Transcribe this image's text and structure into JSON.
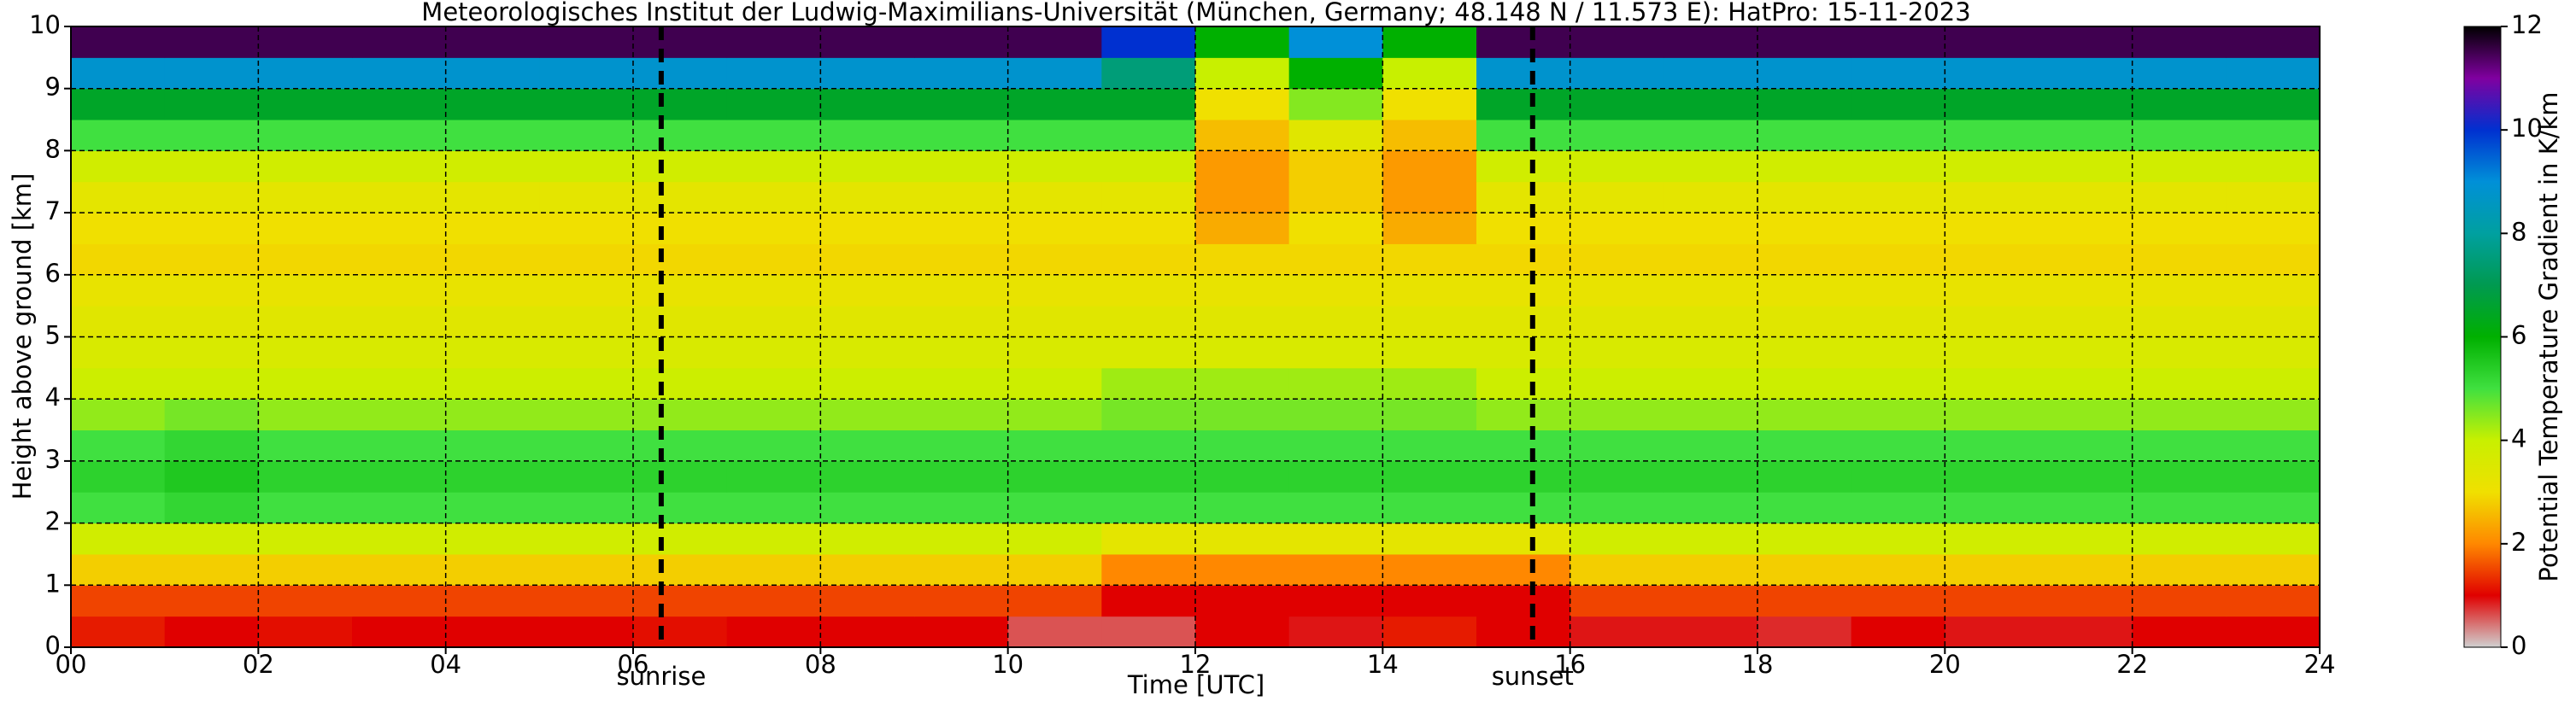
{
  "chart_data": {
    "type": "heatmap",
    "title": "Meteorologisches Institut der Ludwig-Maximilians-Universität (München, Germany; 48.148 N / 11.573 E):    HatPro: 15-11-2023",
    "xlabel": "Time [UTC]",
    "ylabel": "Height above ground [km]",
    "xlim": [
      0,
      24
    ],
    "ylim": [
      0,
      10
    ],
    "xticks": [
      {
        "value": 0,
        "label": "00"
      },
      {
        "value": 2,
        "label": "02"
      },
      {
        "value": 4,
        "label": "04"
      },
      {
        "value": 6,
        "label": "06"
      },
      {
        "value": 8,
        "label": "08"
      },
      10,
      12,
      14,
      16,
      18,
      20,
      22,
      24
    ],
    "yticks": [
      0,
      1,
      2,
      3,
      4,
      5,
      6,
      7,
      8,
      9,
      10
    ],
    "grid": true,
    "xbins": [
      0,
      1,
      2,
      3,
      4,
      5,
      6,
      7,
      8,
      9,
      10,
      11,
      12,
      13,
      14,
      15,
      16,
      17,
      18,
      19,
      20,
      21,
      22,
      23,
      24
    ],
    "ybins": [
      0,
      0.5,
      1,
      1.5,
      2,
      2.5,
      3,
      3.5,
      4,
      4.5,
      5,
      5.5,
      6,
      6.5,
      7,
      7.5,
      8,
      8.5,
      9,
      9.5,
      10
    ],
    "values": [
      [
        1.2,
        1.0,
        1.1,
        1.0,
        1.0,
        1.0,
        1.1,
        1.0,
        1.0,
        1.0,
        0.6,
        0.6,
        1.0,
        0.9,
        1.2,
        1.0,
        0.9,
        0.9,
        0.8,
        1.0,
        0.9,
        0.9,
        1.0,
        1.0
      ],
      [
        1.5,
        1.5,
        1.5,
        1.5,
        1.5,
        1.5,
        1.5,
        1.5,
        1.5,
        1.5,
        1.5,
        1.0,
        1.0,
        1.0,
        1.0,
        1.0,
        1.5,
        1.5,
        1.5,
        1.5,
        1.5,
        1.5,
        1.5,
        1.5
      ],
      [
        2.8,
        2.8,
        2.8,
        2.8,
        2.8,
        2.8,
        2.8,
        2.8,
        2.8,
        2.8,
        2.8,
        2.0,
        2.0,
        2.0,
        2.0,
        2.0,
        2.8,
        2.8,
        2.8,
        2.8,
        2.8,
        2.8,
        2.8,
        2.8
      ],
      [
        3.8,
        3.8,
        3.8,
        3.8,
        3.8,
        3.8,
        3.8,
        3.8,
        3.8,
        3.8,
        3.8,
        3.3,
        3.3,
        3.3,
        3.3,
        3.3,
        3.8,
        3.8,
        3.8,
        3.8,
        3.8,
        3.8,
        3.8,
        3.8
      ],
      [
        5.0,
        5.2,
        5.0,
        5.0,
        5.0,
        5.0,
        5.0,
        5.0,
        5.0,
        5.0,
        5.0,
        5.0,
        5.0,
        5.0,
        5.0,
        5.0,
        5.0,
        5.0,
        5.0,
        5.0,
        5.0,
        5.0,
        5.0,
        5.0
      ],
      [
        5.3,
        5.5,
        5.3,
        5.3,
        5.3,
        5.3,
        5.3,
        5.3,
        5.3,
        5.3,
        5.3,
        5.3,
        5.3,
        5.3,
        5.3,
        5.3,
        5.3,
        5.3,
        5.3,
        5.3,
        5.3,
        5.3,
        5.3,
        5.3
      ],
      [
        5.0,
        5.2,
        5.0,
        5.0,
        5.0,
        5.0,
        5.0,
        5.0,
        5.0,
        5.0,
        5.0,
        5.0,
        5.0,
        5.0,
        5.0,
        5.0,
        5.0,
        5.0,
        5.0,
        5.0,
        5.0,
        5.0,
        5.0,
        5.0
      ],
      [
        4.4,
        4.6,
        4.4,
        4.4,
        4.4,
        4.4,
        4.4,
        4.4,
        4.4,
        4.4,
        4.4,
        4.6,
        4.6,
        4.6,
        4.6,
        4.4,
        4.4,
        4.4,
        4.4,
        4.4,
        4.4,
        4.4,
        4.4,
        4.4
      ],
      [
        3.9,
        3.9,
        3.9,
        3.9,
        3.9,
        3.9,
        3.9,
        3.9,
        3.9,
        3.9,
        3.9,
        4.3,
        4.3,
        4.3,
        4.3,
        3.9,
        3.9,
        3.9,
        3.9,
        3.9,
        3.9,
        3.9,
        3.9,
        3.9
      ],
      [
        3.6,
        3.6,
        3.6,
        3.6,
        3.6,
        3.6,
        3.6,
        3.6,
        3.6,
        3.6,
        3.6,
        3.6,
        3.6,
        3.6,
        3.6,
        3.6,
        3.6,
        3.6,
        3.6,
        3.6,
        3.6,
        3.6,
        3.6,
        3.6
      ],
      [
        3.4,
        3.4,
        3.4,
        3.4,
        3.4,
        3.4,
        3.4,
        3.4,
        3.4,
        3.4,
        3.4,
        3.4,
        3.4,
        3.4,
        3.4,
        3.4,
        3.4,
        3.4,
        3.4,
        3.4,
        3.4,
        3.4,
        3.4,
        3.4
      ],
      [
        3.2,
        3.2,
        3.2,
        3.2,
        3.2,
        3.2,
        3.2,
        3.2,
        3.2,
        3.2,
        3.2,
        3.2,
        3.2,
        3.2,
        3.2,
        3.2,
        3.2,
        3.2,
        3.2,
        3.2,
        3.2,
        3.2,
        3.2,
        3.2
      ],
      [
        2.9,
        2.9,
        2.9,
        2.9,
        2.9,
        2.9,
        2.9,
        2.9,
        2.9,
        2.9,
        2.9,
        2.9,
        2.9,
        2.9,
        2.9,
        2.9,
        2.9,
        2.9,
        2.9,
        2.9,
        2.9,
        2.9,
        2.9,
        2.9
      ],
      [
        3.0,
        3.0,
        3.0,
        3.0,
        3.0,
        3.0,
        3.0,
        3.0,
        3.0,
        3.0,
        3.0,
        3.0,
        2.4,
        3.0,
        2.4,
        3.0,
        3.0,
        3.0,
        3.0,
        3.0,
        3.0,
        3.0,
        3.0,
        3.0
      ],
      [
        3.3,
        3.3,
        3.3,
        3.3,
        3.3,
        3.3,
        3.3,
        3.3,
        3.3,
        3.3,
        3.3,
        3.3,
        2.2,
        2.8,
        2.2,
        3.3,
        3.3,
        3.3,
        3.3,
        3.3,
        3.3,
        3.3,
        3.3,
        3.3
      ],
      [
        3.8,
        3.8,
        3.8,
        3.8,
        3.8,
        3.8,
        3.8,
        3.8,
        3.8,
        3.8,
        3.8,
        3.8,
        2.2,
        2.8,
        2.2,
        3.8,
        3.8,
        3.8,
        3.8,
        3.8,
        3.8,
        3.8,
        3.8,
        3.8
      ],
      [
        5.0,
        5.0,
        5.0,
        5.0,
        5.0,
        5.0,
        5.0,
        5.0,
        5.0,
        5.0,
        5.0,
        5.0,
        2.6,
        3.4,
        2.6,
        5.0,
        5.0,
        5.0,
        5.0,
        5.0,
        5.0,
        5.0,
        5.0,
        5.0
      ],
      [
        6.5,
        6.5,
        6.5,
        6.5,
        6.5,
        6.5,
        6.5,
        6.5,
        6.5,
        6.5,
        6.5,
        6.5,
        3.0,
        4.5,
        3.0,
        6.5,
        6.5,
        6.5,
        6.5,
        6.5,
        6.5,
        6.5,
        6.5,
        6.5
      ],
      [
        8.8,
        8.8,
        8.8,
        8.8,
        8.8,
        8.8,
        8.8,
        8.8,
        8.8,
        8.8,
        8.8,
        7.5,
        4.0,
        6.0,
        4.0,
        8.8,
        8.8,
        8.8,
        8.8,
        8.8,
        8.8,
        8.8,
        8.8,
        8.8
      ],
      [
        11.5,
        11.5,
        11.5,
        11.5,
        11.5,
        11.5,
        11.5,
        11.5,
        11.5,
        11.5,
        11.5,
        10.0,
        6.0,
        9.0,
        6.0,
        11.5,
        11.5,
        11.5,
        11.5,
        11.5,
        11.5,
        11.5,
        11.5,
        11.5
      ]
    ],
    "colormap": [
      {
        "value": 0,
        "color": "#d0d0d0"
      },
      {
        "value": 1,
        "color": "#e00000"
      },
      {
        "value": 2,
        "color": "#ff8800"
      },
      {
        "value": 3,
        "color": "#f0e000"
      },
      {
        "value": 4,
        "color": "#c8f000"
      },
      {
        "value": 5,
        "color": "#40e040"
      },
      {
        "value": 6,
        "color": "#00b000"
      },
      {
        "value": 7,
        "color": "#009a50"
      },
      {
        "value": 8,
        "color": "#00a0a0"
      },
      {
        "value": 9,
        "color": "#0090d8"
      },
      {
        "value": 10,
        "color": "#0030d0"
      },
      {
        "value": 11,
        "color": "#8000a0"
      },
      {
        "value": 12,
        "color": "#000000"
      }
    ],
    "colorbar": {
      "label": "Potential Temperature Gradient in K/km",
      "lim": [
        0,
        12
      ],
      "ticks": [
        0,
        2,
        4,
        6,
        8,
        10,
        12
      ]
    },
    "annotations": [
      {
        "x": 6.3,
        "label": "sunrise"
      },
      {
        "x": 15.6,
        "label": "sunset"
      }
    ]
  }
}
